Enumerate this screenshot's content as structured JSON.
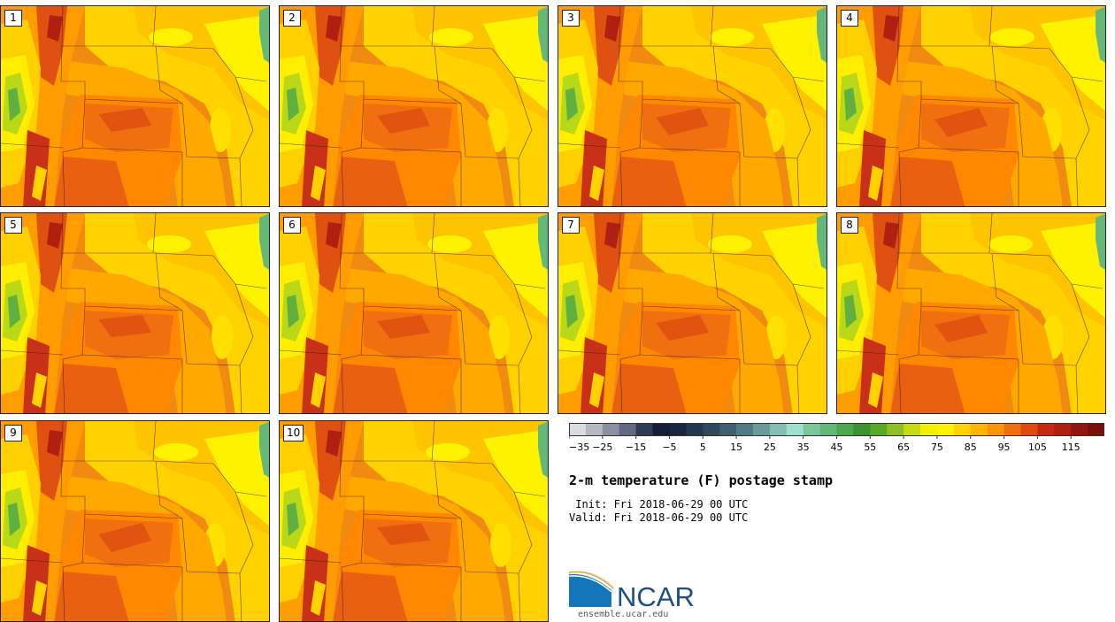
{
  "panels": [
    {
      "number": "1"
    },
    {
      "number": "2"
    },
    {
      "number": "3"
    },
    {
      "number": "4"
    },
    {
      "number": "5"
    },
    {
      "number": "6"
    },
    {
      "number": "7"
    },
    {
      "number": "8"
    },
    {
      "number": "9"
    },
    {
      "number": "10"
    }
  ],
  "colorbar": {
    "colors": [
      "#d9dde2",
      "#b4b8c2",
      "#8a90a0",
      "#606a80",
      "#2e3c58",
      "#141e38",
      "#18263e",
      "#23374e",
      "#2f485c",
      "#3f5e70",
      "#527a86",
      "#6a9a9e",
      "#84bdb6",
      "#9ee0d0",
      "#7ac898",
      "#60b878",
      "#4aa84e",
      "#3c9430",
      "#56a828",
      "#8ec020",
      "#c4dc10",
      "#f0f000",
      "#fff200",
      "#ffd200",
      "#ffb400",
      "#ff9600",
      "#f06e10",
      "#e04a10",
      "#c82810",
      "#b01e10",
      "#941410",
      "#7a1008"
    ],
    "tick_labels": [
      "−35",
      "−25",
      "−15",
      "−5",
      "5",
      "15",
      "25",
      "35",
      "45",
      "55",
      "65",
      "75",
      "85",
      "95",
      "105",
      "115"
    ],
    "min": -35,
    "max": 125,
    "step": 5
  },
  "title": "2-m temperature (F) postage stamp",
  "init_line": " Init: Fri 2018-06-29 00 UTC",
  "valid_line": "Valid: Fri 2018-06-29 00 UTC",
  "logo_text": "NCAR",
  "logo_url": "ensemble.ucar.edu"
}
